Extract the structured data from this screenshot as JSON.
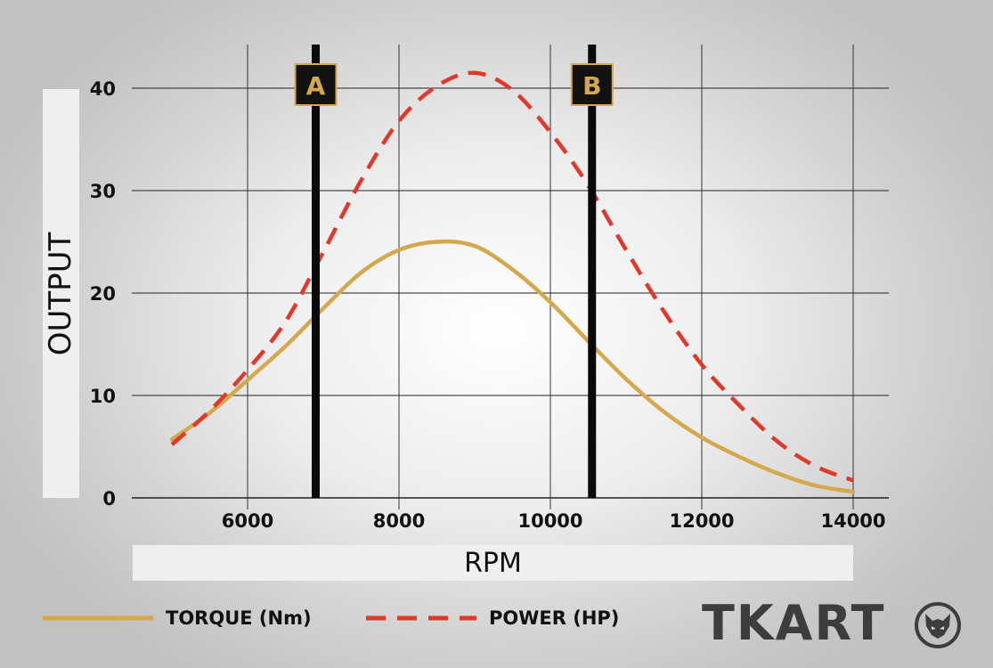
{
  "chart_data": {
    "type": "line",
    "title": "",
    "xlabel": "RPM",
    "ylabel": "OUTPUT",
    "xlim": [
      5000,
      14000
    ],
    "ylim": [
      0,
      40
    ],
    "xticks": [
      "6000",
      "8000",
      "10000",
      "12000",
      "14000"
    ],
    "yticks": [
      "0",
      "10",
      "20",
      "30",
      "40"
    ],
    "grid": true,
    "legend_position": "bottom",
    "series": [
      {
        "name": "TORQUE (Nm)",
        "color": "#d4a84b",
        "dash": "solid",
        "x": [
          5000,
          5500,
          6000,
          6500,
          7000,
          7500,
          8000,
          8500,
          9000,
          9500,
          10000,
          10500,
          11000,
          11500,
          12000,
          12500,
          13000,
          13500,
          14000
        ],
        "y": [
          5.7,
          8.3,
          11.5,
          14.8,
          18.5,
          22.0,
          24.2,
          25.0,
          24.6,
          22.3,
          19.1,
          15.3,
          11.6,
          8.4,
          5.9,
          4.0,
          2.4,
          1.2,
          0.6
        ]
      },
      {
        "name": "POWER (HP)",
        "color": "#e0392b",
        "dash": "dashed",
        "x": [
          5000,
          5500,
          6000,
          6500,
          7000,
          7500,
          8000,
          8500,
          9000,
          9500,
          10000,
          10500,
          11000,
          11500,
          12000,
          12500,
          13000,
          13500,
          14000
        ],
        "y": [
          5.2,
          8.5,
          12.5,
          17.2,
          24.0,
          31.0,
          36.8,
          40.2,
          41.5,
          39.8,
          35.7,
          30.5,
          24.2,
          18.2,
          13.0,
          9.0,
          5.5,
          3.1,
          1.7
        ]
      }
    ],
    "markers": [
      {
        "label": "A",
        "x": 6900
      },
      {
        "label": "B",
        "x": 10550
      }
    ]
  },
  "brand": {
    "name": "TKART",
    "mark": "wolf-logo"
  }
}
